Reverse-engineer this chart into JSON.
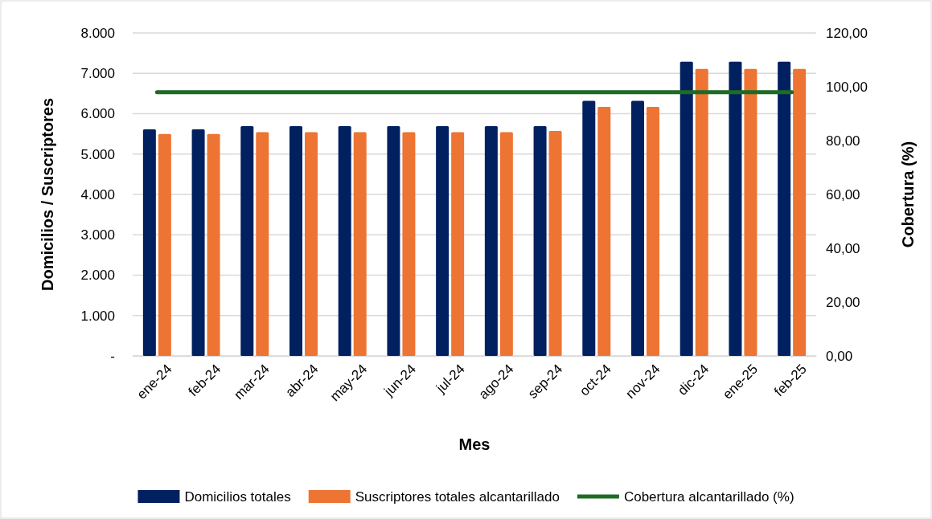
{
  "chart_data": {
    "type": "bar",
    "xlabel": "Mes",
    "ylabel": "Domicilios / Suscriptores",
    "y2label": "Cobertura (%)",
    "categories": [
      "ene-24",
      "feb-24",
      "mar-24",
      "abr-24",
      "may-24",
      "jun-24",
      "jul-24",
      "ago-24",
      "sep-24",
      "oct-24",
      "nov-24",
      "dic-24",
      "ene-25",
      "feb-25"
    ],
    "series": [
      {
        "name": "Domicilios totales",
        "color": "#002060",
        "values": [
          5610,
          5610,
          5690,
          5690,
          5690,
          5690,
          5690,
          5690,
          5690,
          6320,
          6320,
          7290,
          7290,
          7290
        ]
      },
      {
        "name": "Suscriptores totales alcantarillado",
        "color": "#ed7432",
        "values": [
          5500,
          5500,
          5540,
          5540,
          5540,
          5540,
          5540,
          5540,
          5570,
          6170,
          6170,
          7110,
          7110,
          7110
        ]
      },
      {
        "name": "Cobertura alcantarillado (%)",
        "type": "line",
        "axis": "y2",
        "color": "#1e6b24",
        "values": [
          98,
          98,
          98,
          98,
          98,
          98,
          98,
          98,
          98,
          98,
          98,
          98,
          98,
          98
        ]
      }
    ],
    "ylim": [
      0,
      8000
    ],
    "yticks": [
      {
        "value": 0,
        "label": "-"
      },
      {
        "value": 1000,
        "label": "1.000"
      },
      {
        "value": 2000,
        "label": "2.000"
      },
      {
        "value": 3000,
        "label": "3.000"
      },
      {
        "value": 4000,
        "label": "4.000"
      },
      {
        "value": 5000,
        "label": "5.000"
      },
      {
        "value": 6000,
        "label": "6.000"
      },
      {
        "value": 7000,
        "label": "7.000"
      },
      {
        "value": 8000,
        "label": "8.000"
      }
    ],
    "y2lim": [
      0,
      120
    ],
    "y2ticks": [
      {
        "value": 0,
        "label": "0,00"
      },
      {
        "value": 20,
        "label": "20,00"
      },
      {
        "value": 40,
        "label": "40,00"
      },
      {
        "value": 60,
        "label": "60,00"
      },
      {
        "value": 80,
        "label": "80,00"
      },
      {
        "value": 100,
        "label": "100,00"
      },
      {
        "value": 120,
        "label": "120,00"
      }
    ],
    "grid": "y",
    "legend": "bottom",
    "marker": "none",
    "line_style": "solid"
  }
}
